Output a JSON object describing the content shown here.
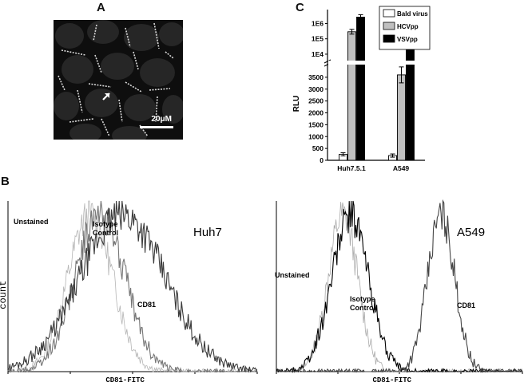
{
  "panels": {
    "a": "A",
    "b": "B",
    "c": "C"
  },
  "micrograph": {
    "scale_label": "20μM"
  },
  "chart_data": [
    {
      "type": "bar",
      "panel": "C",
      "categories": [
        "Huh7.5.1",
        "A549"
      ],
      "series": [
        {
          "name": "Bald virus",
          "values": [
            250,
            200
          ],
          "color": "#ffffff"
        },
        {
          "name": "HCVpp",
          "values": [
            290000,
            3600
          ],
          "color": "#c0c0c0"
        },
        {
          "name": "VSVpp",
          "values": [
            2600000,
            1200000
          ],
          "color": "#000000"
        }
      ],
      "ylabel": "RLU",
      "yticks_lower": [
        "0",
        "500",
        "1000",
        "1500",
        "2000",
        "2500",
        "3000",
        "3500"
      ],
      "yticks_upper": [
        "1E4",
        "1E5",
        "1E6"
      ],
      "lower_ylim": [
        0,
        4000
      ],
      "upper_scale": "log",
      "upper_ylim": [
        3000,
        5000000
      ],
      "axis_break": true,
      "legend_position": "top-right"
    },
    {
      "type": "area",
      "panel": "B",
      "cell_line": "Huh7",
      "xlabel": "CD81-FITC",
      "ylabel": "count",
      "series": [
        {
          "name": "Unstained",
          "peak_log_position": 0.33,
          "spread": 0.09,
          "color": "#b5b5b5"
        },
        {
          "name": "Isotype Control",
          "peak_log_position": 0.37,
          "spread": 0.1,
          "color": "#777777"
        },
        {
          "name": "CD81",
          "peak_log_position": 0.46,
          "spread": 0.17,
          "color": "#3a3a3a"
        }
      ],
      "labels": {
        "unstained": "Unstained",
        "isotype": "Isotype\nControl",
        "cd81": "CD81"
      }
    },
    {
      "type": "area",
      "panel": "B",
      "cell_line": "A549",
      "xlabel": "CD81-FITC",
      "ylabel": "",
      "series": [
        {
          "name": "Unstained",
          "peak_log_position": 0.27,
          "spread": 0.06,
          "color": "#aaaaaa"
        },
        {
          "name": "Isotype Control",
          "peak_log_position": 0.3,
          "spread": 0.075,
          "color": "#000000"
        },
        {
          "name": "CD81",
          "peak_log_position": 0.67,
          "spread": 0.055,
          "color": "#444444"
        }
      ],
      "labels": {
        "unstained": "Unstained",
        "isotype": "Isotype\nControl",
        "cd81": "CD81"
      }
    }
  ]
}
